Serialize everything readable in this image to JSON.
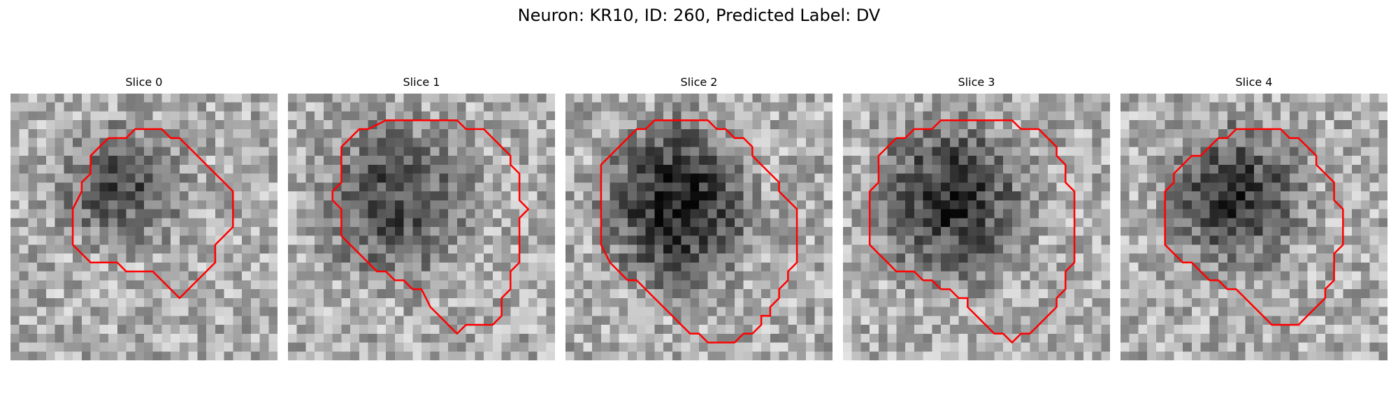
{
  "figure": {
    "title": "Neuron: KR10, ID: 260, Predicted Label: DV"
  },
  "panels": [
    {
      "title": "Slice 0",
      "seed": 101,
      "center": [
        12.5,
        10.5
      ],
      "radius": [
        7.5,
        7.0
      ],
      "darkness": 0.35
    },
    {
      "title": "Slice 1",
      "seed": 202,
      "center": [
        12.0,
        12.0
      ],
      "radius": [
        8.5,
        9.5
      ],
      "darkness": 0.38
    },
    {
      "title": "Slice 2",
      "seed": 303,
      "center": [
        12.5,
        12.5
      ],
      "radius": [
        8.5,
        10.0
      ],
      "darkness": 0.55
    },
    {
      "title": "Slice 3",
      "seed": 404,
      "center": [
        12.0,
        12.0
      ],
      "radius": [
        9.0,
        9.5
      ],
      "darkness": 0.48
    },
    {
      "title": "Slice 4",
      "seed": 505,
      "center": [
        13.0,
        11.5
      ],
      "radius": [
        8.0,
        8.5
      ],
      "darkness": 0.45
    }
  ],
  "contour_color": "#ff0000",
  "grid_size": 30,
  "contours": [
    [
      [
        14,
        4
      ],
      [
        17,
        4
      ],
      [
        18,
        5
      ],
      [
        19,
        5
      ],
      [
        21,
        7
      ],
      [
        22,
        8
      ],
      [
        24,
        10
      ],
      [
        25,
        11
      ],
      [
        25,
        15
      ],
      [
        24,
        16
      ],
      [
        23,
        17
      ],
      [
        23,
        19
      ],
      [
        22,
        20
      ],
      [
        21,
        21
      ],
      [
        20,
        22
      ],
      [
        19,
        23
      ],
      [
        19,
        23
      ],
      [
        16,
        20
      ],
      [
        13,
        20
      ],
      [
        12,
        19
      ],
      [
        9,
        19
      ],
      [
        8,
        18
      ],
      [
        7,
        17
      ],
      [
        7,
        13
      ],
      [
        8,
        11
      ],
      [
        8,
        10
      ],
      [
        9,
        9
      ],
      [
        9,
        7
      ],
      [
        10,
        6
      ],
      [
        11,
        5
      ],
      [
        13,
        5
      ]
    ],
    [
      [
        11,
        3
      ],
      [
        19,
        3
      ],
      [
        20,
        4
      ],
      [
        22,
        4
      ],
      [
        23,
        5
      ],
      [
        24,
        6
      ],
      [
        25,
        7
      ],
      [
        25,
        8
      ],
      [
        26,
        9
      ],
      [
        26,
        10
      ],
      [
        26,
        11
      ],
      [
        26,
        12
      ],
      [
        27,
        13
      ],
      [
        26,
        14
      ],
      [
        26,
        15
      ],
      [
        26,
        19
      ],
      [
        25,
        20
      ],
      [
        25,
        22
      ],
      [
        24,
        23
      ],
      [
        24,
        25
      ],
      [
        23,
        26
      ],
      [
        22,
        26
      ],
      [
        20,
        26
      ],
      [
        19,
        27
      ],
      [
        18,
        26
      ],
      [
        17,
        25
      ],
      [
        16,
        24
      ],
      [
        15,
        22
      ],
      [
        14,
        22
      ],
      [
        13,
        21
      ],
      [
        12,
        21
      ],
      [
        11,
        20
      ],
      [
        10,
        20
      ],
      [
        9,
        19
      ],
      [
        8,
        18
      ],
      [
        7,
        17
      ],
      [
        6,
        16
      ],
      [
        6,
        13
      ],
      [
        5,
        12
      ],
      [
        5,
        11
      ],
      [
        6,
        10
      ],
      [
        6,
        6
      ],
      [
        7,
        5
      ],
      [
        8,
        4
      ],
      [
        9,
        4
      ]
    ],
    [
      [
        9,
        4
      ],
      [
        10,
        3
      ],
      [
        16,
        3
      ],
      [
        17,
        4
      ],
      [
        18,
        4
      ],
      [
        19,
        5
      ],
      [
        20,
        5
      ],
      [
        21,
        6
      ],
      [
        21,
        7
      ],
      [
        22,
        8
      ],
      [
        23,
        9
      ],
      [
        24,
        10
      ],
      [
        24,
        11
      ],
      [
        25,
        12
      ],
      [
        26,
        13
      ],
      [
        26,
        14
      ],
      [
        26,
        15
      ],
      [
        26,
        19
      ],
      [
        25,
        20
      ],
      [
        25,
        21
      ],
      [
        24,
        22
      ],
      [
        24,
        23
      ],
      [
        23,
        24
      ],
      [
        23,
        25
      ],
      [
        22,
        25
      ],
      [
        22,
        26
      ],
      [
        21,
        27
      ],
      [
        20,
        27
      ],
      [
        19,
        28
      ],
      [
        16,
        28
      ],
      [
        15,
        27
      ],
      [
        14,
        27
      ],
      [
        13,
        26
      ],
      [
        12,
        25
      ],
      [
        11,
        24
      ],
      [
        10,
        23
      ],
      [
        9,
        22
      ],
      [
        8,
        21
      ],
      [
        7,
        21
      ],
      [
        6,
        20
      ],
      [
        5,
        19
      ],
      [
        4,
        17
      ],
      [
        4,
        13
      ],
      [
        4,
        10
      ],
      [
        4,
        8
      ],
      [
        5,
        7
      ],
      [
        6,
        6
      ],
      [
        7,
        5
      ],
      [
        8,
        4
      ]
    ],
    [
      [
        9,
        4
      ],
      [
        10,
        4
      ],
      [
        11,
        3
      ],
      [
        19,
        3
      ],
      [
        20,
        4
      ],
      [
        22,
        4
      ],
      [
        23,
        5
      ],
      [
        24,
        6
      ],
      [
        24,
        7
      ],
      [
        25,
        8
      ],
      [
        25,
        10
      ],
      [
        26,
        11
      ],
      [
        26,
        13
      ],
      [
        26,
        17
      ],
      [
        26,
        19
      ],
      [
        25,
        20
      ],
      [
        25,
        22
      ],
      [
        24,
        23
      ],
      [
        24,
        24
      ],
      [
        23,
        25
      ],
      [
        22,
        26
      ],
      [
        21,
        27
      ],
      [
        20,
        27
      ],
      [
        19,
        28
      ],
      [
        18,
        27
      ],
      [
        17,
        27
      ],
      [
        15,
        25
      ],
      [
        14,
        24
      ],
      [
        14,
        23
      ],
      [
        13,
        23
      ],
      [
        12,
        22
      ],
      [
        11,
        22
      ],
      [
        10,
        21
      ],
      [
        9,
        21
      ],
      [
        8,
        20
      ],
      [
        6,
        20
      ],
      [
        5,
        19
      ],
      [
        4,
        18
      ],
      [
        3,
        17
      ],
      [
        3,
        16
      ],
      [
        3,
        11
      ],
      [
        4,
        10
      ],
      [
        4,
        7
      ],
      [
        5,
        6
      ],
      [
        6,
        5
      ],
      [
        7,
        5
      ],
      [
        8,
        4
      ]
    ],
    [
      [
        11,
        5
      ],
      [
        12,
        5
      ],
      [
        13,
        4
      ],
      [
        18,
        4
      ],
      [
        19,
        5
      ],
      [
        20,
        5
      ],
      [
        21,
        6
      ],
      [
        22,
        7
      ],
      [
        22,
        8
      ],
      [
        23,
        9
      ],
      [
        24,
        10
      ],
      [
        24,
        12
      ],
      [
        25,
        13
      ],
      [
        25,
        15
      ],
      [
        25,
        17
      ],
      [
        24,
        18
      ],
      [
        24,
        20
      ],
      [
        24,
        21
      ],
      [
        23,
        22
      ],
      [
        23,
        23
      ],
      [
        22,
        24
      ],
      [
        21,
        25
      ],
      [
        20,
        26
      ],
      [
        17,
        26
      ],
      [
        16,
        25
      ],
      [
        15,
        24
      ],
      [
        13,
        22
      ],
      [
        12,
        22
      ],
      [
        11,
        21
      ],
      [
        10,
        21
      ],
      [
        8,
        19
      ],
      [
        7,
        19
      ],
      [
        6,
        18
      ],
      [
        5,
        17
      ],
      [
        5,
        14
      ],
      [
        5,
        11
      ],
      [
        6,
        10
      ],
      [
        6,
        9
      ],
      [
        7,
        8
      ],
      [
        8,
        7
      ],
      [
        9,
        7
      ],
      [
        10,
        6
      ]
    ]
  ]
}
